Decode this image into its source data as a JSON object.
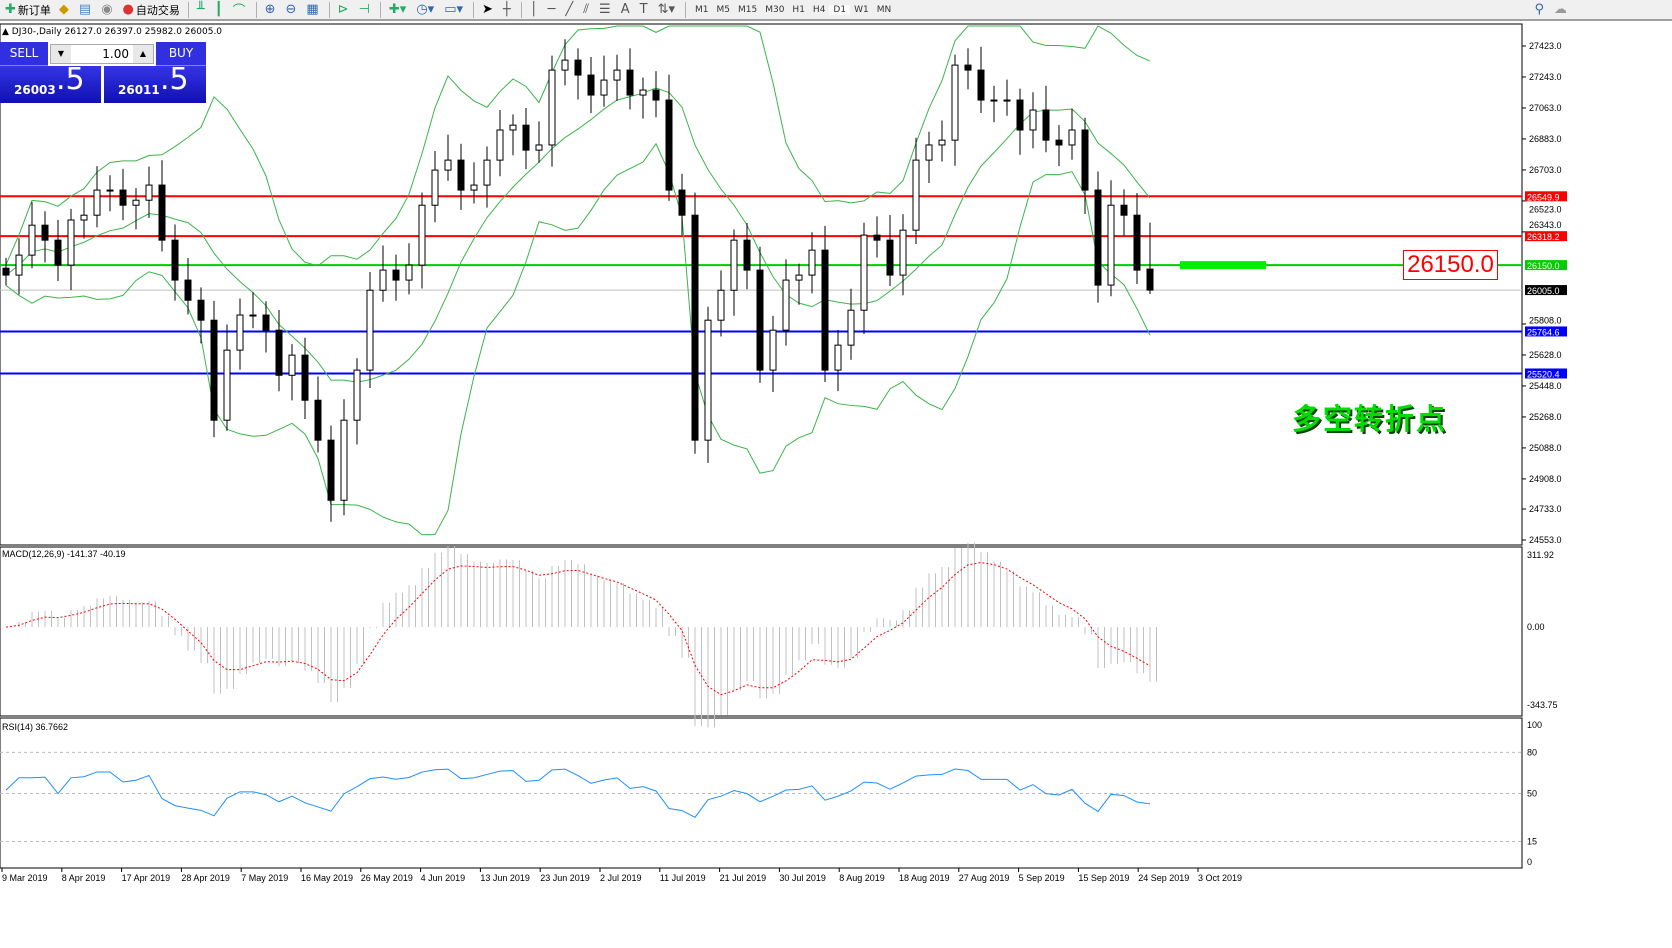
{
  "toolbar": {
    "new_order": "新订单",
    "auto_trading": "自动交易",
    "timeframes": [
      "M1",
      "M5",
      "M15",
      "M30",
      "H1",
      "H4",
      "D1",
      "W1",
      "MN"
    ],
    "active_timeframe": "D1"
  },
  "chart_title": "DJ30-,Daily  26127.0 26397.0 25982.0 26005.0",
  "trade_panel": {
    "sell_label": "SELL",
    "buy_label": "BUY",
    "lot": "1.00",
    "sell_big": "26003",
    "sell_small": ".5",
    "buy_big": "26011",
    "buy_small": ".5"
  },
  "annotation": {
    "text": "多空转折点",
    "price_tag": "26150.0"
  },
  "colors": {
    "up_candle": "#ffffff",
    "down_candle": "#000000",
    "bands": "#3cb44b",
    "macd_signal": "#ff0000",
    "macd_hist": "#c0c0c0",
    "rsi": "#1e90ff",
    "resistance": "#ff0000",
    "pivot": "#00cc00",
    "support": "#0000ff"
  },
  "chart_data": {
    "type": "candlestick",
    "symbol": "DJ30-",
    "period": "Daily",
    "ylim": [
      24553,
      27423
    ],
    "price_ticks": [
      "27423.0",
      "27243.0",
      "27063.0",
      "26883.0",
      "26703.0",
      "26523.0",
      "26343.0",
      "25808.0",
      "25628.0",
      "25448.0",
      "25268.0",
      "25088.0",
      "24908.0",
      "24733.0",
      "24553.0"
    ],
    "date_ticks": [
      "9 Mar 2019",
      "8 Apr 2019",
      "17 Apr 2019",
      "28 Apr 2019",
      "7 May 2019",
      "16 May 2019",
      "26 May 2019",
      "4 Jun 2019",
      "13 Jun 2019",
      "23 Jun 2019",
      "2 Jul 2019",
      "11 Jul 2019",
      "21 Jul 2019",
      "30 Jul 2019",
      "8 Aug 2019",
      "18 Aug 2019",
      "27 Aug 2019",
      "5 Sep 2019",
      "15 Sep 2019",
      "24 Sep 2019",
      "3 Oct 2019"
    ],
    "closes": [
      26092,
      26208,
      26382,
      26295,
      26150,
      26412,
      26440,
      26586,
      26586,
      26498,
      26527,
      26615,
      26295,
      26063,
      25946,
      25830,
      25249,
      25656,
      25860,
      25860,
      25772,
      25510,
      25627,
      25365,
      25133,
      24784,
      25249,
      25540,
      26004,
      26121,
      26063,
      26150,
      26498,
      26702,
      26760,
      26586,
      26615,
      26760,
      26935,
      26963,
      26818,
      26848,
      27283,
      27341,
      27254,
      27138,
      27225,
      27283,
      27138,
      27167,
      27109,
      26586,
      26440,
      25133,
      25830,
      26004,
      26295,
      26121,
      25540,
      25772,
      26063,
      26092,
      26237,
      25540,
      25685,
      25888,
      26324,
      26295,
      26092,
      26353,
      26760,
      26848,
      26876,
      27312,
      27283,
      27109,
      27109,
      27109,
      26935,
      27051,
      26876,
      26848,
      26935,
      26586,
      26034,
      26498,
      26440,
      26121,
      26005
    ],
    "last_bar": {
      "open": 26127.0,
      "high": 26397.0,
      "low": 25982.0,
      "close": 26005.0
    },
    "horizontal_lines": [
      {
        "price": 26549.9,
        "label": "26549.9",
        "color": "#ff0000"
      },
      {
        "price": 26318.2,
        "label": "26318.2",
        "color": "#ff0000"
      },
      {
        "price": 26150.0,
        "label": "26150.0",
        "color": "#00cc00"
      },
      {
        "price": 26005.0,
        "label": "26005.0",
        "color": "#c0c0c0"
      },
      {
        "price": 25764.6,
        "label": "25764.6",
        "color": "#0000ff"
      },
      {
        "price": 25520.4,
        "label": "25520.4",
        "color": "#0000ff"
      }
    ],
    "indicators": {
      "bollinger": {
        "visible": true
      },
      "macd": {
        "label": "MACD(12,26,9) -141.37 -40.19",
        "ticks": [
          "311.92",
          "0.00",
          "-343.75"
        ],
        "ylim": [
          -343.75,
          311.92
        ]
      },
      "rsi": {
        "label": "RSI(14) 36.7662",
        "ticks": [
          "100",
          "80",
          "50",
          "15",
          "0"
        ],
        "levels": [
          80,
          50,
          15
        ]
      }
    }
  }
}
